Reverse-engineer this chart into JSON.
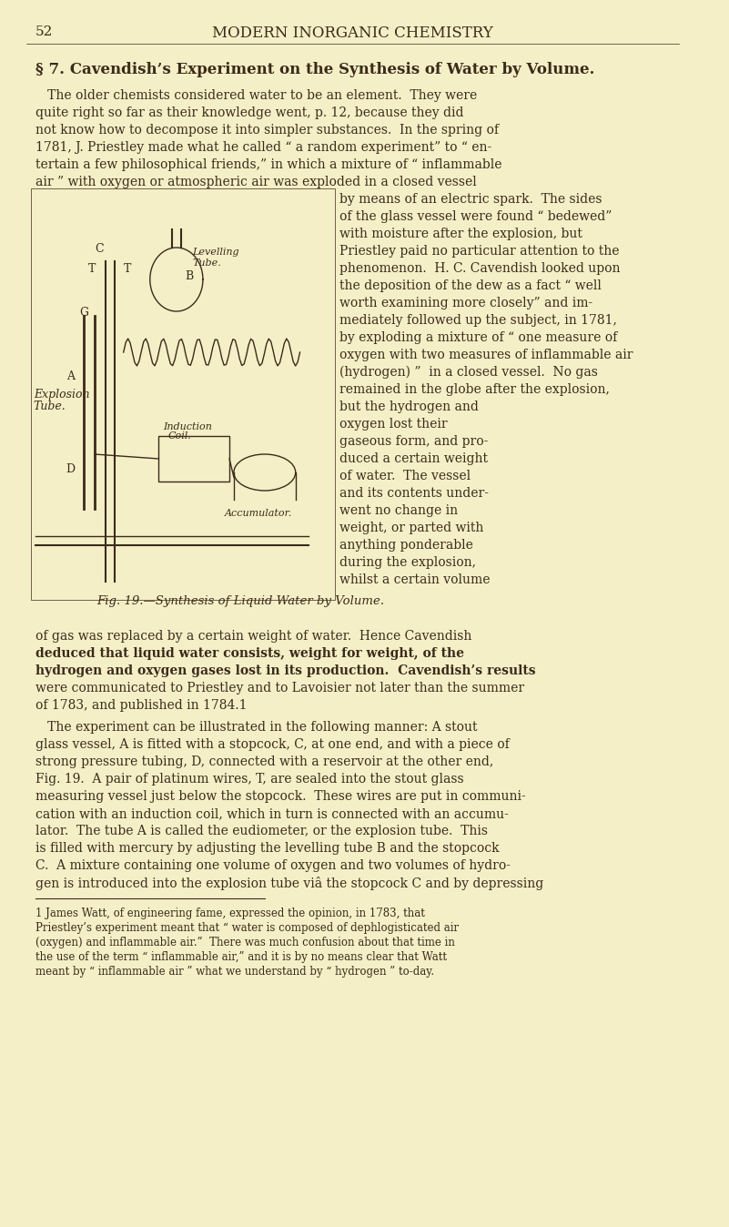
{
  "bg_color": "#F5EFC7",
  "text_color": "#3B2A1A",
  "page_number": "52",
  "header": "MODERN INORGANIC CHEMISTRY",
  "section_title": "§ 7. Cavendish’s Experiment on the Synthesis of Water by Volume.",
  "para1": "The older chemists considered water to be an element.  They were quite right so far as their knowledge went, p. 12, because they did not know how to decompose it into simpler substances.  In the spring of 1781, J. Priestley made what he called “ a random experiment” to “ en- tertain a few philosophical friends,” in which a mixture of “ inflammable air ” with oxygen or atmospheric air was exploded in a closed vessel by means of an electric spark.  The sides",
  "para1_right": "of the glass vessel were found “ bedewed ” with moisture after the explosion, but Priestley paid no particular attention to the phenomenon.  H. C. Cavendish looked upon the deposition of the dew as a fact “ well worth examining more closely ” and im- mediately followed up the subject, in 1781, by exploding a mixture of “ one measure of oxygen with two measures of inflammable air (hydrogen) ”  in a closed vessel.  No gas remained in the globe after the explosion,",
  "para2_right": "but the hydrogen and oxygen lost their gaseous form, and pro- duced a certain weight of water.  The vessel and its contents under- went no change in weight, or parted with anything ponderable during the explosion, whilst a certain volume",
  "fig_caption": "Fig. 19.—Synthesis of Liquid Water by Volume.",
  "para3": "of gas was replaced by a certain weight of water.  Hence Cavendish deduced that liquid water consists, weight for weight, of the hydrogen and oxygen gases lost in its production.  Cavendish’s results were communicated to Priestley and to Lavoisier not later than the summer of 1783, and published in 1784.1",
  "para4": "The experiment can be illustrated in the following manner: A stout glass vessel, A is fitted with a stopcock, C, at one end, and with a piece of strong pressure tubing, D, connected with a reservoir at the other end, Fig. 19.  A pair of platinum wires, T, are sealed into the stout glass measuring vessel just below the stopcock.  These wires are put in communi- cation with an induction coil, which in turn is connected with an accumu- lator.  The tube A is called the eudiometer, or the explosion tube.  This is filled with mercury by adjusting the levelling tube B and the stopcock C.  A mixture containing one volume of oxygen and two volumes of hydro- gen is introduced into the explosion tube viâ the stopcock C and by depressing",
  "footnote": "1 James Watt, of engineering fame, expressed the opinion, in 1783, that Priestley’s experiment meant that “ water is composed of dephlogisticated air (oxygen) and inflammable air.”  There was much confusion about that time in the use of the term “ inflammable air,” and it is by no means clear that Watt meant by “ inflammable air ” what we understand by “ hydrogen ” to-day."
}
